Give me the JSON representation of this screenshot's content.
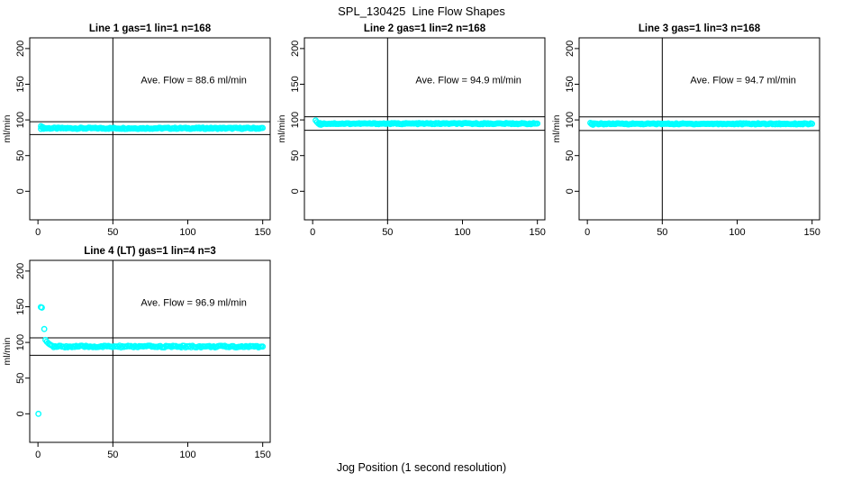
{
  "figure": {
    "title": "SPL_130425  Line Flow Shapes",
    "xlabel": "Jog Position (1 second resolution)",
    "ylabel": "ml/min"
  },
  "colors": {
    "marker": "#00FFFF",
    "axis": "#000000",
    "background": "#FFFFFF"
  },
  "chart_data": {
    "type": "scatter",
    "title": "SPL_130425  Line Flow Shapes",
    "xlabel": "Jog Position (1 second resolution)",
    "ylabel": "ml/min",
    "x_ticks": [
      0,
      50,
      100,
      150
    ],
    "y_ticks": [
      0,
      50,
      100,
      150,
      200
    ],
    "x_range": [
      -5.5,
      155
    ],
    "y_range": [
      -40,
      215
    ],
    "grid": false,
    "legend": "none",
    "marker": "open-circle",
    "marker_color": "#00FFFF",
    "panels": [
      {
        "title": "Line 1 gas=1 lin=1 n=168",
        "line": 1,
        "gas": 1,
        "lin": 1,
        "n": 168,
        "avg_flow_ml_min": 88.6,
        "annotation": "Ave. Flow =  88.6  ml/min",
        "annotation_pos": [
          104,
          151
        ],
        "vline_x": 50,
        "ref_lines": [
          97.5,
          79.5
        ],
        "outliers": [],
        "transient": [
          [
            2,
            91.3
          ],
          [
            2.9,
            90.2
          ],
          [
            3.8,
            89.2
          ]
        ],
        "band": {
          "x_start": 2,
          "x_end": 150,
          "level": 88.3,
          "jitter": 0.9,
          "points": 168
        }
      },
      {
        "title": "Line 2 gas=1 lin=2 n=168",
        "line": 2,
        "gas": 1,
        "lin": 2,
        "n": 168,
        "avg_flow_ml_min": 94.9,
        "annotation": "Ave. Flow =  94.9  ml/min",
        "annotation_pos": [
          104,
          151
        ],
        "vline_x": 50,
        "ref_lines": [
          104.4,
          85.4
        ],
        "outliers": [],
        "transient": [
          [
            2,
            99.3
          ],
          [
            2.9,
            97.0
          ],
          [
            3.8,
            95.0
          ],
          [
            4.7,
            93.6
          ],
          [
            5.6,
            93.2
          ]
        ],
        "band": {
          "x_start": 5,
          "x_end": 150,
          "level": 94.8,
          "jitter": 0.8,
          "points": 168
        }
      },
      {
        "title": "Line 3 gas=1 lin=3 n=168",
        "line": 3,
        "gas": 1,
        "lin": 3,
        "n": 168,
        "avg_flow_ml_min": 94.7,
        "annotation": "Ave. Flow =  94.7  ml/min",
        "annotation_pos": [
          104,
          151
        ],
        "vline_x": 50,
        "ref_lines": [
          104.2,
          85.2
        ],
        "outliers": [],
        "transient": [
          [
            2,
            95.8
          ],
          [
            2.9,
            94.0
          ],
          [
            3.8,
            93.2
          ]
        ],
        "band": {
          "x_start": 3,
          "x_end": 150,
          "level": 94.5,
          "jitter": 0.8,
          "points": 168
        }
      },
      {
        "title": "Line 4 (LT) gas=1 lin=4 n=3",
        "line": 4,
        "lt": true,
        "gas": 1,
        "lin": 4,
        "n": 3,
        "avg_flow_ml_min": 96.9,
        "annotation": "Ave. Flow =  96.9  ml/min",
        "annotation_pos": [
          104,
          151
        ],
        "vline_x": 50,
        "ref_lines": [
          106.5,
          82
        ],
        "outliers": [
          [
            0.3,
            0
          ],
          [
            1.9,
            149.5
          ],
          [
            2.6,
            148.8
          ],
          [
            4.2,
            118.8
          ]
        ],
        "transient": [
          [
            5,
            103.5
          ],
          [
            5.9,
            101.0
          ],
          [
            6.8,
            99.0
          ],
          [
            7.7,
            97.5
          ],
          [
            8.6,
            96.3
          ],
          [
            9.5,
            95.4
          ]
        ],
        "band": {
          "x_start": 10.5,
          "x_end": 150,
          "level": 94.2,
          "jitter": 1.3,
          "points": 150
        }
      }
    ]
  }
}
